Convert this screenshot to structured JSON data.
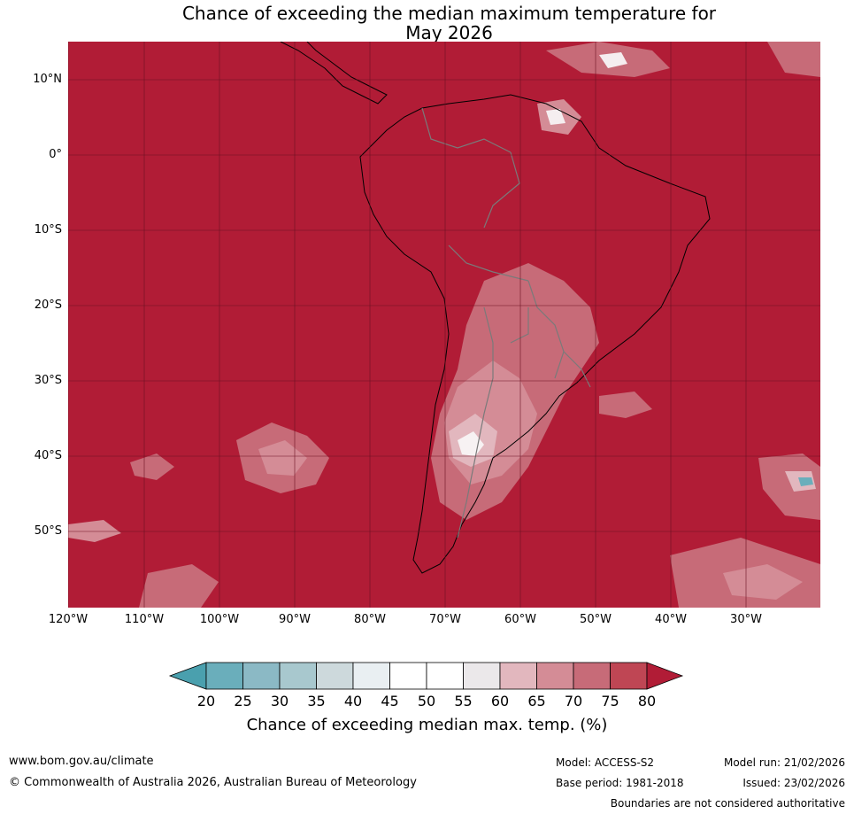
{
  "title_line1": "Chance of exceeding the median maximum temperature for",
  "title_line2": "May 2026",
  "map": {
    "latitude_labels": [
      "10°N",
      "0°",
      "10°S",
      "20°S",
      "30°S",
      "40°S",
      "50°S"
    ],
    "longitude_labels": [
      "120°W",
      "110°W",
      "100°W",
      "90°W",
      "80°W",
      "70°W",
      "60°W",
      "50°W",
      "40°W",
      "30°W"
    ],
    "background_color": "#b11c36"
  },
  "colorbar": {
    "ticks": [
      "20",
      "25",
      "30",
      "35",
      "40",
      "45",
      "50",
      "55",
      "60",
      "65",
      "70",
      "75",
      "80"
    ],
    "colors": [
      "#4aa0ae",
      "#6aaebb",
      "#8bb9c5",
      "#a8c8ce",
      "#cdd9dc",
      "#e9eff2",
      "#ffffff",
      "#ffffff",
      "#ebe8ea",
      "#e2b7be",
      "#d48c96",
      "#c76b78",
      "#bf4654",
      "#b11c36"
    ],
    "label": "Chance of exceeding median max. temp. (%)"
  },
  "footer": {
    "website": "www.bom.gov.au/climate",
    "copyright": "© Commonwealth of Australia 2026, Australian Bureau of Meteorology",
    "model": "Model: ACCESS-S2",
    "base_period": "Base period: 1981-2018",
    "model_run": "Model run: 21/02/2026",
    "issued": "Issued: 23/02/2026",
    "disclaimer": "Boundaries are not considered authoritative"
  }
}
